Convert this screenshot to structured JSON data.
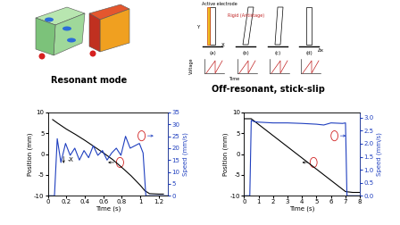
{
  "panels": {
    "resonant": {
      "caption": "Resonant mode"
    },
    "stick_slip": {
      "caption": "Off-resonant, stick-slip",
      "electrode": "Active electrode",
      "rigid": "Rigid (Antistage)",
      "axis_y": "Y",
      "axis_x": "X",
      "voltage": "Voltage",
      "time": "Time",
      "shift": "Δx",
      "stages": [
        "(a)",
        "(b)",
        "(c)",
        "(d)"
      ]
    }
  },
  "chart_data": [
    {
      "type": "line",
      "x_label": "Time (s)",
      "y_label": "Position (mm)",
      "y2_label": "Speed (mm/s)",
      "xlim": [
        0,
        1.3
      ],
      "xticks": [
        0,
        0.2,
        0.4,
        0.6,
        0.8,
        1,
        1.2
      ],
      "ylim": [
        -10,
        10
      ],
      "yticks": [
        -10,
        -5,
        0,
        5,
        10
      ],
      "y2lim": [
        0,
        35
      ],
      "y2ticks": [
        0,
        5,
        10,
        15,
        20,
        25,
        30,
        35
      ],
      "annotations": [
        "-X"
      ],
      "series": [
        {
          "color": "#000000",
          "x": [
            0.05,
            0.1,
            0.2,
            0.3,
            0.4,
            0.5,
            0.6,
            0.7,
            0.8,
            0.9,
            1.0,
            1.05,
            1.1,
            1.2,
            1.25
          ],
          "values": [
            8.3,
            7.5,
            6.0,
            4.7,
            3.3,
            1.8,
            0.3,
            -1.3,
            -3.2,
            -5.2,
            -7.5,
            -8.8,
            -9.5,
            -9.6,
            -9.6
          ]
        },
        {
          "color": "#1f3fbf",
          "axis": "y2",
          "x": [
            0,
            0.07,
            0.1,
            0.14,
            0.19,
            0.24,
            0.29,
            0.34,
            0.39,
            0.44,
            0.49,
            0.54,
            0.59,
            0.64,
            0.69,
            0.74,
            0.79,
            0.84,
            0.89,
            0.94,
            0.99,
            1.03,
            1.06,
            1.3
          ],
          "values": [
            0,
            0,
            24,
            14,
            22,
            17,
            20,
            15,
            19,
            16,
            21,
            17,
            19,
            15,
            18,
            20,
            17,
            25,
            20,
            21,
            22,
            18,
            0,
            0
          ]
        }
      ]
    },
    {
      "type": "line",
      "x_label": "Time (s)",
      "y_label": "Position (mm)",
      "y2_label": "Speed (mm/s)",
      "xlim": [
        0,
        8
      ],
      "xticks": [
        0,
        1,
        2,
        3,
        4,
        5,
        6,
        7,
        8
      ],
      "ylim": [
        -10,
        10
      ],
      "yticks": [
        -10,
        -5,
        0,
        5,
        10
      ],
      "y2lim": [
        0,
        3.2
      ],
      "y2ticks": [
        {
          "value": 0,
          "label": "0.0"
        },
        0.5,
        {
          "value": 1,
          "label": "1.0"
        },
        1.5,
        {
          "value": 2,
          "label": "2.0"
        },
        2.5,
        {
          "value": 3,
          "label": "3.0"
        }
      ],
      "series": [
        {
          "color": "#000000",
          "x": [
            0,
            0.5,
            7.0,
            7.5,
            8.0
          ],
          "values": [
            8.5,
            8.5,
            -9.0,
            -9.2,
            -9.2
          ]
        },
        {
          "color": "#1f3fbf",
          "axis": "y2",
          "x": [
            0,
            0.4,
            0.5,
            0.7,
            1,
            2,
            3,
            4,
            5,
            5.5,
            6,
            6.8,
            7.0,
            7.1,
            8
          ],
          "values": [
            0,
            0,
            2.9,
            2.85,
            2.83,
            2.8,
            2.8,
            2.78,
            2.75,
            2.72,
            2.8,
            2.78,
            2.8,
            0,
            0
          ]
        }
      ]
    }
  ]
}
